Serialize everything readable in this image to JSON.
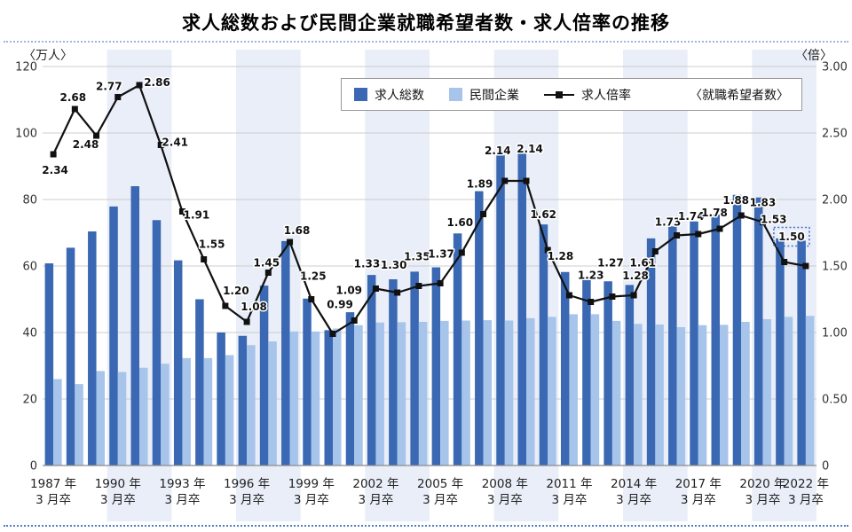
{
  "title": "求人総数および民間企業就職希望者数・求人倍率の推移",
  "legend": {
    "total": "求人総数",
    "private": "民間企業",
    "ratio": "求人倍率",
    "note": "〈就職希望者数〉"
  },
  "colors": {
    "bar_total": "#3a68b2",
    "bar_private": "#a7c4ea",
    "band": "#e9eef8",
    "grid": "#cccccc",
    "axis": "#8c8c8c",
    "line": "#111111",
    "value_label": "#111111",
    "highlight_box": "#4472c4",
    "separator_top": "#9fb6dd",
    "separator_bottom": "#4f7dc4"
  },
  "chart_data": {
    "type": "bar+line",
    "years": [
      1987,
      1988,
      1989,
      1990,
      1991,
      1992,
      1993,
      1994,
      1995,
      1996,
      1997,
      1998,
      1999,
      2000,
      2001,
      2002,
      2003,
      2004,
      2005,
      2006,
      2007,
      2008,
      2009,
      2010,
      2011,
      2012,
      2013,
      2014,
      2015,
      2016,
      2017,
      2018,
      2019,
      2020,
      2021,
      2022
    ],
    "x_tick_years": [
      1987,
      1990,
      1993,
      1996,
      1999,
      2002,
      2005,
      2008,
      2011,
      2014,
      2017,
      2020,
      2022
    ],
    "x_tick_line1_suffix": " 年",
    "x_tick_line2": "3 月卒",
    "left_axis": {
      "label": "〈万人〉",
      "max": 120,
      "tick_values": [
        0,
        20,
        40,
        60,
        80,
        100,
        120
      ],
      "tick_labels": [
        "0",
        "20",
        "40",
        "60",
        "80",
        "100",
        "120"
      ]
    },
    "right_axis": {
      "label": "〈倍〉",
      "max": 3,
      "tick_values": [
        0,
        0.5,
        1,
        1.5,
        2,
        2.5,
        3
      ],
      "tick_labels": [
        "0",
        "0.50",
        "1.00",
        "1.50",
        "2.00",
        "2.50",
        "3.00"
      ]
    },
    "shaded_group_starts": [
      3,
      9,
      15,
      21,
      27,
      33
    ],
    "series": [
      {
        "name": "求人総数",
        "type": "bar",
        "unit": "万人",
        "values": [
          60.8,
          65.5,
          70.4,
          77.9,
          84.0,
          73.8,
          61.7,
          50.0,
          40.0,
          39.0,
          54.1,
          67.5,
          50.2,
          40.7,
          46.1,
          57.3,
          56.0,
          58.3,
          59.6,
          69.8,
          82.5,
          93.3,
          94.8,
          72.5,
          58.2,
          56.0,
          55.4,
          54.3,
          68.3,
          71.9,
          73.4,
          75.5,
          81.4,
          80.6,
          68.3,
          67.6
        ]
      },
      {
        "name": "民間企業〈就職希望者数〉",
        "type": "bar",
        "unit": "万人",
        "values": [
          26.0,
          24.5,
          28.4,
          28.1,
          29.4,
          30.6,
          32.3,
          32.3,
          33.2,
          36.2,
          37.3,
          40.3,
          40.3,
          41.2,
          42.2,
          43.0,
          43.1,
          43.2,
          43.5,
          43.6,
          43.7,
          43.6,
          44.3,
          44.7,
          45.5,
          45.5,
          43.5,
          42.6,
          42.4,
          41.6,
          42.2,
          42.3,
          43.2,
          44.0,
          44.7,
          45.0
        ]
      },
      {
        "name": "求人倍率",
        "type": "line",
        "unit": "倍",
        "values": [
          2.34,
          2.68,
          2.48,
          2.77,
          2.86,
          2.41,
          1.91,
          1.55,
          1.2,
          1.08,
          1.45,
          1.68,
          1.25,
          0.99,
          1.09,
          1.33,
          1.3,
          1.35,
          1.37,
          1.6,
          1.89,
          2.14,
          2.14,
          1.62,
          1.28,
          1.23,
          1.27,
          1.28,
          1.61,
          1.73,
          1.74,
          1.78,
          1.88,
          1.83,
          1.53,
          1.5
        ],
        "point_labels": [
          "2.34",
          "2.68",
          "2.48",
          "2.77",
          "2.86",
          "2.41",
          "1.91",
          "1.55",
          "1.20",
          "1.08",
          "1.45",
          "1.68",
          "1.25",
          "0.99",
          "1.09",
          "1.33",
          "1.30",
          "1.35",
          "1.37",
          "1.60",
          "1.89",
          "2.14",
          "2.14",
          "1.62",
          "1.28",
          "1.23",
          "1.27",
          "1.28",
          "1.61",
          "1.73",
          "1.74",
          "1.78",
          "1.88",
          "1.83",
          "1.53",
          "1.50"
        ],
        "label_offsets": [
          [
            2,
            18
          ],
          [
            -2,
            -13
          ],
          [
            -12,
            10
          ],
          [
            -10,
            -12
          ],
          [
            20,
            -3
          ],
          [
            16,
            -3
          ],
          [
            16,
            4
          ],
          [
            9,
            -17
          ],
          [
            12,
            -17
          ],
          [
            8,
            -17
          ],
          [
            -2,
            -11
          ],
          [
            8,
            -13
          ],
          [
            2,
            -26
          ],
          [
            8,
            -33
          ],
          [
            -6,
            -34
          ],
          [
            -10,
            -28
          ],
          [
            -4,
            -31
          ],
          [
            -2,
            -33
          ],
          [
            1,
            -33
          ],
          [
            -2,
            -34
          ],
          [
            -4,
            -34
          ],
          [
            -8,
            -34
          ],
          [
            4,
            -36
          ],
          [
            -5,
            -40
          ],
          [
            -10,
            -44
          ],
          [
            0,
            -30
          ],
          [
            -2,
            -38
          ],
          [
            2,
            -22
          ],
          [
            -14,
            13
          ],
          [
            -10,
            -15
          ],
          [
            -8,
            -20
          ],
          [
            -6,
            -18
          ],
          [
            -6,
            -17
          ],
          [
            0,
            -22
          ],
          [
            -12,
            -48
          ],
          [
            -16,
            -33
          ]
        ],
        "highlighted_point_index": 35
      }
    ]
  }
}
